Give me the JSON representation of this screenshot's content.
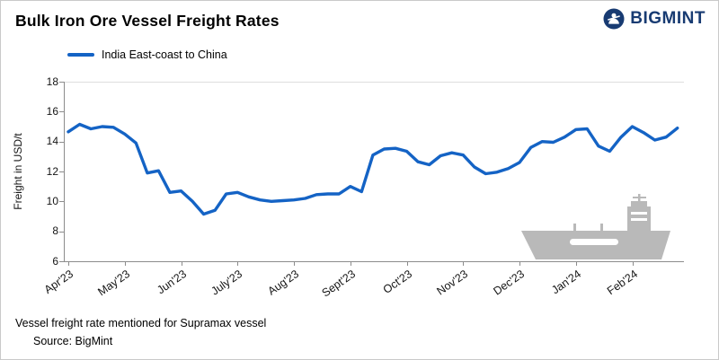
{
  "header": {
    "title": "Bulk Iron Ore Vessel Freight Rates",
    "brand": "BIGMINT",
    "brand_color": "#183b72"
  },
  "legend": {
    "label": "India East-coast to China",
    "color": "#1463c5"
  },
  "footer": {
    "note": "Vessel freight rate mentioned for Supramax vessel",
    "source": "Source:  BigMint"
  },
  "chart_data": {
    "type": "line",
    "title": "Bulk Iron Ore Vessel Freight Rates",
    "xlabel": "",
    "ylabel": "Freight  in USD/t",
    "ylim": [
      6,
      18
    ],
    "yticks": [
      6,
      8,
      10,
      12,
      14,
      16,
      18
    ],
    "grid": "off",
    "legend_position": "top-left",
    "x_tick_labels": [
      "Apr'23",
      "May'23",
      "Jun'23",
      "July'23",
      "Aug'23",
      "Sept'23",
      "Oct'23",
      "Nov'23",
      "Dec'23",
      "Jan'24",
      "Feb'24"
    ],
    "ship_color": "#b9b9b9",
    "series": [
      {
        "name": "India East-coast to China",
        "color": "#1463c5",
        "values": [
          14.65,
          15.15,
          14.85,
          15.0,
          14.95,
          14.5,
          13.9,
          11.9,
          12.05,
          10.6,
          10.7,
          10.0,
          9.15,
          9.4,
          10.5,
          10.6,
          10.3,
          10.1,
          10.0,
          10.05,
          10.1,
          10.2,
          10.45,
          10.5,
          10.5,
          11.0,
          10.65,
          13.1,
          13.5,
          13.55,
          13.35,
          12.65,
          12.45,
          13.05,
          13.25,
          13.1,
          12.3,
          11.85,
          11.95,
          12.2,
          12.6,
          13.6,
          14.0,
          13.95,
          14.3,
          14.8,
          14.85,
          13.7,
          13.35,
          14.3,
          15.0,
          14.6,
          14.1,
          14.3,
          14.9
        ]
      }
    ]
  }
}
